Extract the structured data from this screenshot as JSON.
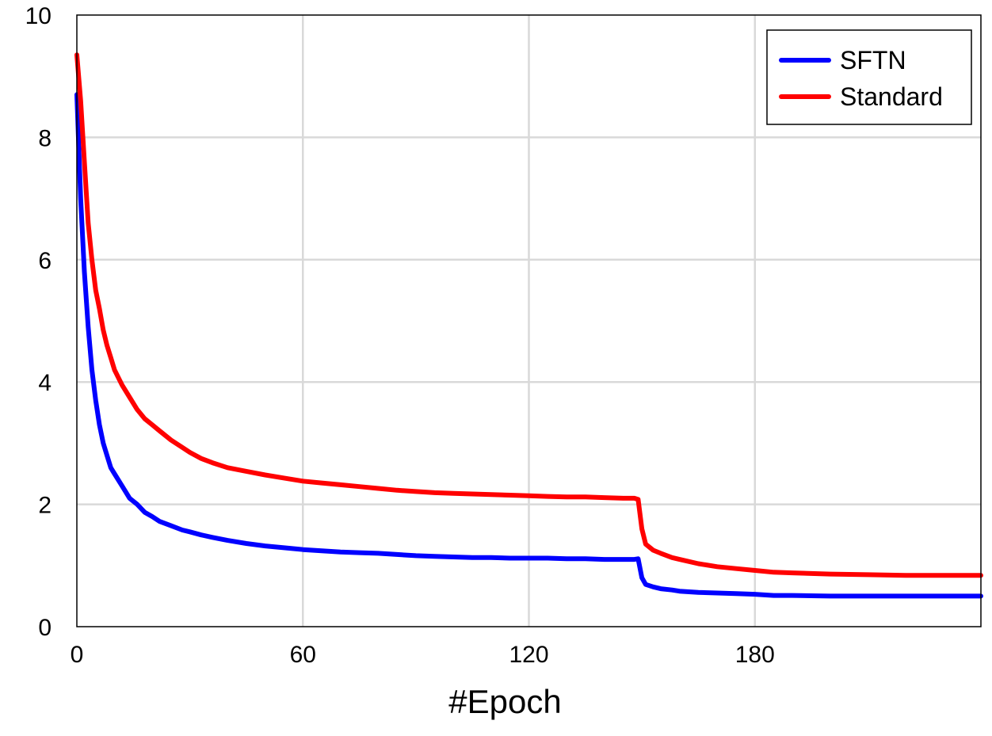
{
  "chart_data": {
    "type": "line",
    "title": "",
    "xlabel": "#Epoch",
    "ylabel": "",
    "xlim": [
      0,
      240
    ],
    "ylim": [
      0,
      10
    ],
    "xticks": [
      0,
      60,
      120,
      180
    ],
    "yticks": [
      0,
      2,
      4,
      6,
      8,
      10
    ],
    "grid": true,
    "legend_position": "top-right",
    "series": [
      {
        "name": "SFTN",
        "color": "#0000ff",
        "x": [
          0,
          1,
          2,
          3,
          4,
          5,
          6,
          7,
          8,
          9,
          10,
          12,
          14,
          16,
          18,
          20,
          22,
          25,
          28,
          30,
          33,
          36,
          40,
          45,
          50,
          55,
          60,
          65,
          70,
          75,
          80,
          85,
          90,
          95,
          100,
          105,
          110,
          115,
          120,
          125,
          130,
          135,
          140,
          145,
          148,
          149,
          150,
          151,
          153,
          155,
          158,
          160,
          165,
          170,
          175,
          180,
          185,
          190,
          200,
          210,
          220,
          230,
          240
        ],
        "y": [
          8.7,
          7.0,
          5.8,
          4.9,
          4.2,
          3.7,
          3.3,
          3.0,
          2.8,
          2.6,
          2.5,
          2.3,
          2.1,
          2.0,
          1.87,
          1.8,
          1.72,
          1.65,
          1.58,
          1.55,
          1.5,
          1.46,
          1.41,
          1.36,
          1.32,
          1.29,
          1.26,
          1.24,
          1.22,
          1.21,
          1.2,
          1.18,
          1.16,
          1.15,
          1.14,
          1.13,
          1.13,
          1.12,
          1.12,
          1.12,
          1.11,
          1.11,
          1.1,
          1.1,
          1.1,
          1.11,
          0.8,
          0.69,
          0.65,
          0.62,
          0.6,
          0.58,
          0.56,
          0.55,
          0.54,
          0.53,
          0.51,
          0.51,
          0.5,
          0.5,
          0.5,
          0.5,
          0.5
        ]
      },
      {
        "name": "Standard",
        "color": "#ff0000",
        "x": [
          0,
          1,
          2,
          3,
          4,
          5,
          6,
          7,
          8,
          9,
          10,
          12,
          14,
          16,
          18,
          20,
          22,
          25,
          28,
          30,
          33,
          36,
          40,
          45,
          50,
          55,
          60,
          65,
          70,
          75,
          80,
          85,
          90,
          95,
          100,
          105,
          110,
          115,
          120,
          125,
          130,
          135,
          140,
          145,
          148,
          149,
          150,
          151,
          153,
          155,
          158,
          160,
          165,
          170,
          175,
          180,
          185,
          190,
          200,
          210,
          220,
          230,
          240
        ],
        "y": [
          9.35,
          8.6,
          7.6,
          6.6,
          6.0,
          5.5,
          5.2,
          4.85,
          4.6,
          4.4,
          4.2,
          3.95,
          3.75,
          3.55,
          3.4,
          3.3,
          3.2,
          3.05,
          2.93,
          2.85,
          2.75,
          2.68,
          2.6,
          2.54,
          2.48,
          2.43,
          2.38,
          2.35,
          2.32,
          2.29,
          2.26,
          2.23,
          2.21,
          2.19,
          2.18,
          2.17,
          2.16,
          2.15,
          2.14,
          2.13,
          2.12,
          2.12,
          2.11,
          2.1,
          2.1,
          2.08,
          1.6,
          1.35,
          1.25,
          1.2,
          1.13,
          1.1,
          1.03,
          0.98,
          0.95,
          0.92,
          0.89,
          0.88,
          0.86,
          0.85,
          0.84,
          0.84,
          0.84
        ]
      }
    ]
  }
}
